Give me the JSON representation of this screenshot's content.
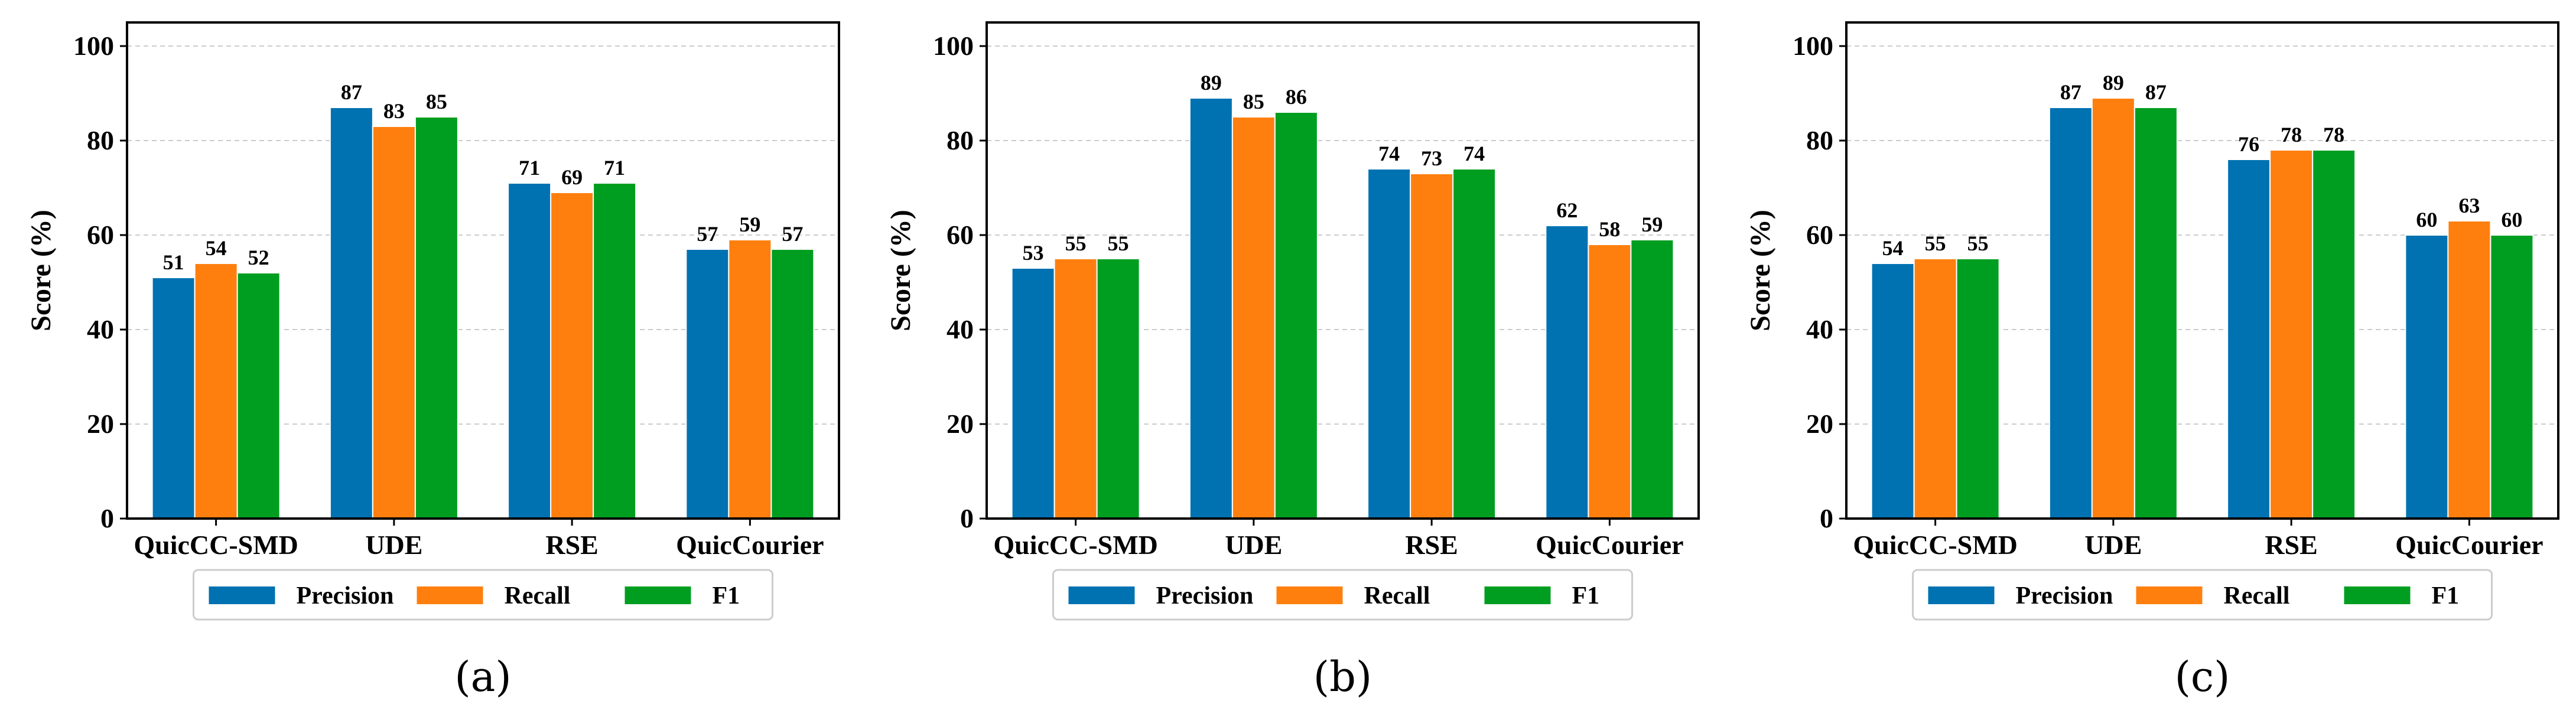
{
  "chart_data": [
    {
      "type": "bar",
      "panel_label": "(a)",
      "categories": [
        "QuicCC-SMD",
        "UDE",
        "RSE",
        "QuicCourier"
      ],
      "series": [
        {
          "name": "Precision",
          "values": [
            51,
            87,
            71,
            57
          ]
        },
        {
          "name": "Recall",
          "values": [
            54,
            83,
            69,
            59
          ]
        },
        {
          "name": "F1",
          "values": [
            52,
            85,
            71,
            57
          ]
        }
      ],
      "title": "",
      "xlabel": "",
      "ylabel": "Score (%)",
      "ylim": [
        0,
        105
      ],
      "yticks": [
        0,
        20,
        40,
        60,
        80,
        100
      ],
      "grid": "y-dashed",
      "legend": "bottom-center"
    },
    {
      "type": "bar",
      "panel_label": "(b)",
      "categories": [
        "QuicCC-SMD",
        "UDE",
        "RSE",
        "QuicCourier"
      ],
      "series": [
        {
          "name": "Precision",
          "values": [
            53,
            89,
            74,
            62
          ]
        },
        {
          "name": "Recall",
          "values": [
            55,
            85,
            73,
            58
          ]
        },
        {
          "name": "F1",
          "values": [
            55,
            86,
            74,
            59
          ]
        }
      ],
      "title": "",
      "xlabel": "",
      "ylabel": "Score (%)",
      "ylim": [
        0,
        105
      ],
      "yticks": [
        0,
        20,
        40,
        60,
        80,
        100
      ],
      "grid": "y-dashed",
      "legend": "bottom-center"
    },
    {
      "type": "bar",
      "panel_label": "(c)",
      "categories": [
        "QuicCC-SMD",
        "UDE",
        "RSE",
        "QuicCourier"
      ],
      "series": [
        {
          "name": "Precision",
          "values": [
            54,
            87,
            76,
            60
          ]
        },
        {
          "name": "Recall",
          "values": [
            55,
            89,
            78,
            63
          ]
        },
        {
          "name": "F1",
          "values": [
            55,
            87,
            78,
            60
          ]
        }
      ],
      "title": "",
      "xlabel": "",
      "ylabel": "Score (%)",
      "ylim": [
        0,
        105
      ],
      "yticks": [
        0,
        20,
        40,
        60,
        80,
        100
      ],
      "grid": "y-dashed",
      "legend": "bottom-center"
    }
  ],
  "colors": {
    "series": [
      "#0072b2",
      "#ff7f0e",
      "#009e20"
    ],
    "grid": "#cccccc",
    "axis": "#000000"
  }
}
